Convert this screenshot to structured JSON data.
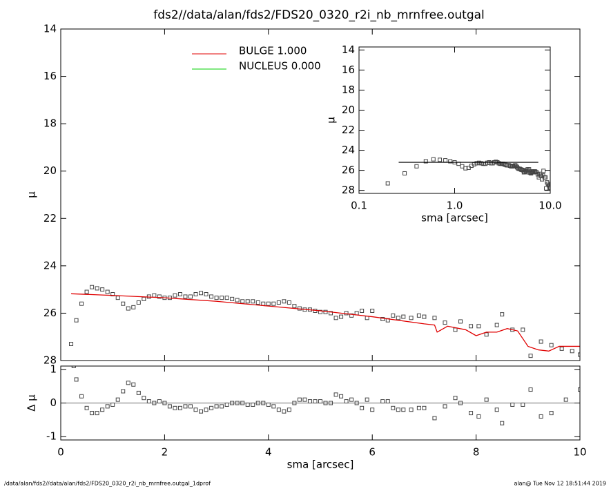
{
  "chart_data": [
    {
      "type": "scatter",
      "title": "fds2//data/alan/fds2/FDS20_0320_r2i_nb_mrnfree.outgal",
      "ylabel": "μ",
      "xlim": [
        0,
        10
      ],
      "xticks": [
        0,
        2,
        4,
        6,
        8,
        10
      ],
      "ylim": [
        28,
        14
      ],
      "yticks": [
        14,
        16,
        18,
        20,
        22,
        24,
        26,
        28
      ],
      "marker_color": "#444444",
      "x": [
        0.2,
        0.3,
        0.4,
        0.5,
        0.6,
        0.7,
        0.8,
        0.9,
        1.0,
        1.1,
        1.2,
        1.3,
        1.4,
        1.5,
        1.6,
        1.7,
        1.8,
        1.9,
        2.0,
        2.1,
        2.2,
        2.3,
        2.4,
        2.5,
        2.6,
        2.7,
        2.8,
        2.9,
        3.0,
        3.1,
        3.2,
        3.3,
        3.4,
        3.5,
        3.6,
        3.7,
        3.8,
        3.9,
        4.0,
        4.1,
        4.2,
        4.3,
        4.4,
        4.5,
        4.6,
        4.7,
        4.8,
        4.9,
        5.0,
        5.1,
        5.2,
        5.3,
        5.4,
        5.5,
        5.6,
        5.7,
        5.8,
        5.9,
        6.0,
        6.2,
        6.3,
        6.4,
        6.5,
        6.6,
        6.75,
        6.9,
        7.0,
        7.2,
        7.4,
        7.6,
        7.7,
        7.9,
        8.05,
        8.2,
        8.4,
        8.5,
        8.7,
        8.9,
        9.05,
        9.25,
        9.45,
        9.65,
        9.85,
        10.0
      ],
      "values": [
        27.3,
        26.3,
        25.6,
        25.1,
        24.9,
        24.95,
        25.0,
        25.1,
        25.2,
        25.35,
        25.6,
        25.8,
        25.75,
        25.55,
        25.4,
        25.3,
        25.25,
        25.3,
        25.35,
        25.35,
        25.25,
        25.2,
        25.3,
        25.3,
        25.2,
        25.15,
        25.2,
        25.3,
        25.35,
        25.35,
        25.35,
        25.4,
        25.45,
        25.5,
        25.5,
        25.5,
        25.55,
        25.6,
        25.6,
        25.6,
        25.55,
        25.5,
        25.55,
        25.7,
        25.8,
        25.85,
        25.85,
        25.9,
        25.95,
        25.95,
        26.0,
        26.2,
        26.15,
        26.0,
        26.1,
        26.0,
        25.9,
        26.2,
        25.9,
        26.25,
        26.3,
        26.1,
        26.2,
        26.15,
        26.2,
        26.1,
        26.15,
        26.2,
        26.4,
        26.7,
        26.35,
        26.55,
        26.55,
        26.9,
        26.5,
        26.05,
        26.7,
        26.7,
        27.8,
        27.2,
        27.35,
        27.5,
        27.6,
        27.75
      ],
      "series": [
        {
          "color": "#e00000",
          "x": [
            0.2,
            1.0,
            2.0,
            3.0,
            4.0,
            5.0,
            6.0,
            7.0,
            7.2,
            7.25,
            7.45,
            7.8,
            8.0,
            8.2,
            8.4,
            8.6,
            8.8,
            9.0,
            9.2,
            9.4,
            9.6,
            10.0
          ],
          "values": [
            25.18,
            25.25,
            25.35,
            25.5,
            25.7,
            25.9,
            26.15,
            26.45,
            26.5,
            26.8,
            26.55,
            26.7,
            26.95,
            26.8,
            26.8,
            26.65,
            26.75,
            27.4,
            27.55,
            27.6,
            27.4,
            27.4
          ]
        }
      ],
      "legend": [
        {
          "label": "BULGE  1.000",
          "color": "#e00000"
        },
        {
          "label": "NUCLEUS  0.000",
          "color": "#00d000"
        }
      ]
    },
    {
      "type": "inset",
      "xlabel": "sma [arcsec]",
      "ylabel": "μ",
      "xlog": true,
      "xlim": [
        0.1,
        10
      ],
      "xticks": [
        0.1,
        {
          "value": 1,
          "label": "1.0"
        },
        {
          "value": 10,
          "label": "10.0"
        }
      ],
      "ylim": [
        28.3,
        13.7
      ],
      "yticks": [
        14,
        16,
        18,
        20,
        22,
        24,
        26,
        28
      ],
      "series": [
        {
          "color": "#000000",
          "x": [
            0.26,
            7.5
          ],
          "values": [
            25.2,
            25.2
          ]
        }
      ]
    },
    {
      "type": "residual",
      "xlabel": "sma [arcsec]",
      "ylabel": "Δ μ",
      "xlim": [
        0,
        10
      ],
      "xticks": [
        0,
        2,
        4,
        6,
        8,
        10
      ],
      "ylim": [
        -1.1,
        1.1
      ],
      "yticks": [
        -1,
        0,
        1
      ],
      "zero_line": true,
      "x": [
        0.25,
        0.3,
        0.4,
        0.5,
        0.6,
        0.7,
        0.8,
        0.9,
        1.0,
        1.1,
        1.2,
        1.3,
        1.4,
        1.5,
        1.6,
        1.7,
        1.8,
        1.9,
        2.0,
        2.1,
        2.2,
        2.3,
        2.4,
        2.5,
        2.6,
        2.7,
        2.8,
        2.9,
        3.0,
        3.1,
        3.2,
        3.3,
        3.4,
        3.5,
        3.6,
        3.7,
        3.8,
        3.9,
        4.0,
        4.1,
        4.2,
        4.3,
        4.4,
        4.5,
        4.6,
        4.7,
        4.8,
        4.9,
        5.0,
        5.1,
        5.2,
        5.3,
        5.4,
        5.5,
        5.6,
        5.7,
        5.8,
        5.9,
        6.0,
        6.2,
        6.3,
        6.4,
        6.5,
        6.6,
        6.75,
        6.9,
        7.0,
        7.2,
        7.4,
        7.6,
        7.7,
        7.9,
        8.05,
        8.2,
        8.4,
        8.5,
        8.7,
        8.9,
        9.05,
        9.25,
        9.45,
        9.73,
        10.0
      ],
      "values": [
        1.1,
        0.7,
        0.2,
        -0.15,
        -0.3,
        -0.3,
        -0.2,
        -0.1,
        -0.05,
        0.1,
        0.35,
        0.6,
        0.55,
        0.3,
        0.15,
        0.05,
        0.0,
        0.05,
        0.0,
        -0.1,
        -0.15,
        -0.15,
        -0.1,
        -0.1,
        -0.2,
        -0.25,
        -0.2,
        -0.15,
        -0.1,
        -0.1,
        -0.05,
        0.0,
        0.0,
        0.0,
        -0.05,
        -0.05,
        0.0,
        0.0,
        -0.05,
        -0.1,
        -0.2,
        -0.25,
        -0.2,
        0.0,
        0.1,
        0.1,
        0.05,
        0.05,
        0.05,
        0.0,
        0.0,
        0.25,
        0.2,
        0.05,
        0.1,
        0.0,
        -0.15,
        0.1,
        -0.2,
        0.05,
        0.05,
        -0.15,
        -0.2,
        -0.2,
        -0.2,
        -0.15,
        -0.15,
        -0.45,
        -0.1,
        0.15,
        0.0,
        -0.3,
        -0.4,
        0.1,
        -0.2,
        -0.6,
        -0.05,
        -0.05,
        0.4,
        -0.4,
        -0.3,
        0.1,
        0.4
      ]
    }
  ],
  "footer": {
    "left": "/data/alan/fds2//data/alan/fds2/FDS20_0320_r2i_nb_mrnfree.outgal_1dprof",
    "right": "alan@  Tue Nov 12 18:51:44 2019"
  }
}
